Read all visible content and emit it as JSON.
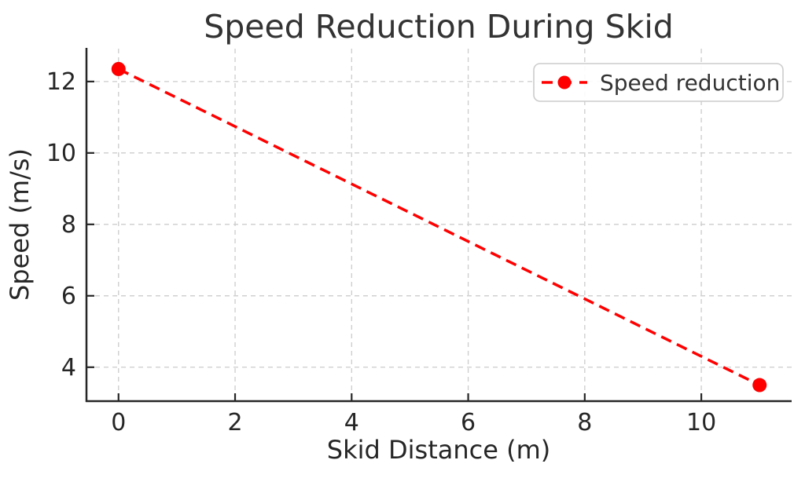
{
  "chart_data": {
    "type": "line",
    "title": "Speed Reduction During Skid",
    "xlabel": "Skid Distance (m)",
    "ylabel": "Speed (m/s)",
    "series": [
      {
        "name": "Speed reduction",
        "x": [
          0,
          11
        ],
        "y": [
          12.35,
          3.5
        ],
        "color": "#ff0000",
        "linestyle": "dashed",
        "marker": "circle",
        "linewidth": 3.5,
        "markersize": 9
      }
    ],
    "xticks": [
      0,
      2,
      4,
      6,
      8,
      10
    ],
    "yticks": [
      4,
      6,
      8,
      10,
      12
    ],
    "xlim": [
      -0.55,
      11.55
    ],
    "ylim": [
      3.05,
      12.92
    ],
    "grid": true,
    "grid_style": "dashed",
    "legend": {
      "position": "upper right",
      "entries": [
        "Speed reduction"
      ]
    },
    "colors": {
      "line": "#ff0000",
      "grid": "#cccccc",
      "text": "#262626",
      "title": "#333333",
      "spine": "#262626",
      "legend_border": "#cccccc",
      "legend_background": "#ffffff"
    }
  }
}
